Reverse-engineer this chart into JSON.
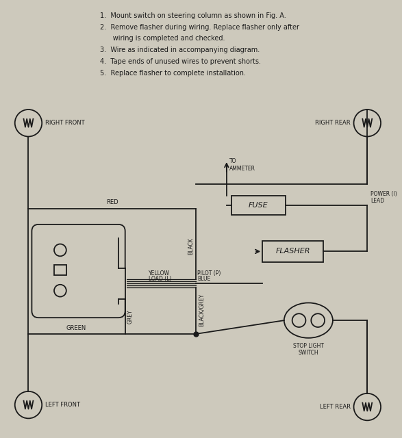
{
  "bg_color": "#cdc9bc",
  "line_color": "#1a1a1a",
  "instructions": [
    "1.  Mount switch on steering column as shown in Fig. A.",
    "2.  Remove flasher during wiring. Replace flasher only after",
    "      wiring is completed and checked.",
    "3.  Wire as indicated in accompanying diagram.",
    "4.  Tape ends of unused wires to prevent shorts.",
    "5.  Replace flasher to complete installation."
  ],
  "labels": {
    "right_front": "RIGHT FRONT",
    "right_rear": "RIGHT REAR",
    "left_front": "LEFT FRONT",
    "left_rear": "LEFT REAR",
    "to_ammeter": "TO\nAMMETER",
    "fuse": "FUSE",
    "flasher": "FLASHER",
    "power": "POWER (I)\nLEAD",
    "pilot_p": "PILOT (P)",
    "blue": "BLUE",
    "yellow": "YELLOW",
    "load_l": "LOAD (L)",
    "black": "BLACK",
    "grey": "GREY",
    "black_grey": "BLACK/GREY",
    "red": "RED",
    "green": "GREEN",
    "stop_light": "STOP LIGHT\nSWITCH"
  }
}
